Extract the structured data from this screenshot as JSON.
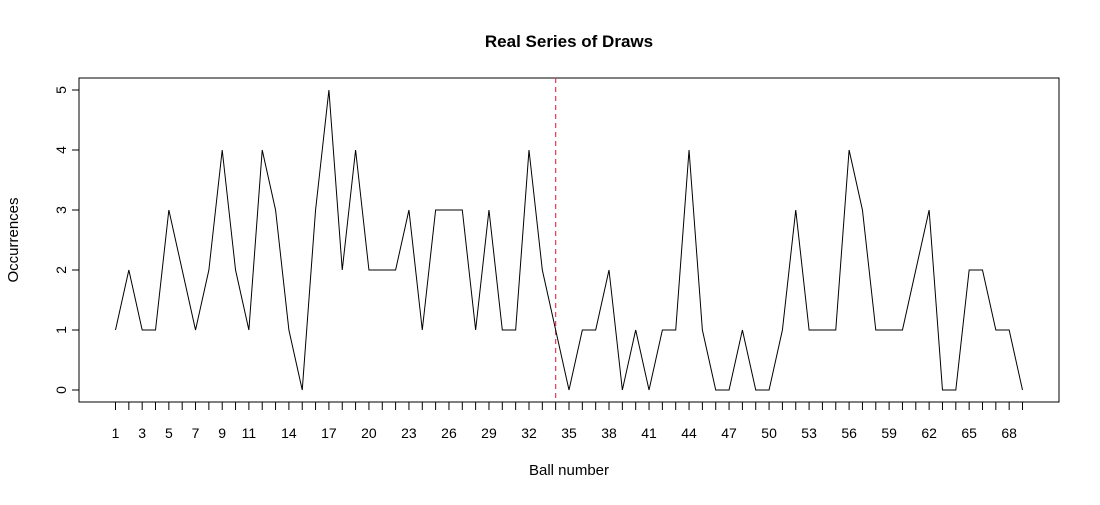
{
  "chart_data": {
    "type": "line",
    "title": "Real Series of Draws",
    "xlabel": "Ball number",
    "ylabel": "Occurrences",
    "x": [
      1,
      2,
      3,
      4,
      5,
      6,
      7,
      8,
      9,
      10,
      11,
      12,
      13,
      14,
      15,
      16,
      17,
      18,
      19,
      20,
      21,
      22,
      23,
      24,
      25,
      26,
      27,
      28,
      29,
      30,
      31,
      32,
      33,
      34,
      35,
      36,
      37,
      38,
      39,
      40,
      41,
      42,
      43,
      44,
      45,
      46,
      47,
      48,
      49,
      50,
      51,
      52,
      53,
      54,
      55,
      56,
      57,
      58,
      59,
      60,
      61,
      62,
      63,
      64,
      65,
      66,
      67,
      68,
      69
    ],
    "series": [
      {
        "values": [
          1,
          2,
          1,
          1,
          3,
          2,
          1,
          2,
          4,
          2,
          1,
          4,
          3,
          1,
          0,
          3,
          5,
          2,
          4,
          2,
          2,
          2,
          3,
          1,
          3,
          3,
          3,
          1,
          3,
          1,
          1,
          4,
          2,
          1,
          0,
          1,
          1,
          2,
          0,
          1,
          0,
          1,
          1,
          4,
          1,
          0,
          0,
          1,
          0,
          0,
          1,
          3,
          1,
          1,
          1,
          4,
          3,
          1,
          1,
          1,
          2,
          3,
          0,
          0,
          2,
          2,
          1,
          1,
          0
        ],
        "color": "#000000"
      }
    ],
    "xlim": [
      1,
      69
    ],
    "ylim": [
      0,
      5
    ],
    "y_ticks": [
      "0",
      "1",
      "2",
      "3",
      "4",
      "5"
    ],
    "x_tick_labels": [
      "1",
      "3",
      "5",
      "7",
      "9",
      "11",
      "14",
      "17",
      "20",
      "23",
      "26",
      "29",
      "32",
      "35",
      "38",
      "41",
      "44",
      "47",
      "50",
      "53",
      "56",
      "59",
      "62",
      "65",
      "68"
    ],
    "reference_line": {
      "x": 34,
      "orientation": "vertical",
      "style": "dashed",
      "color": "#e8384f"
    },
    "grid": false,
    "legend": "none"
  }
}
